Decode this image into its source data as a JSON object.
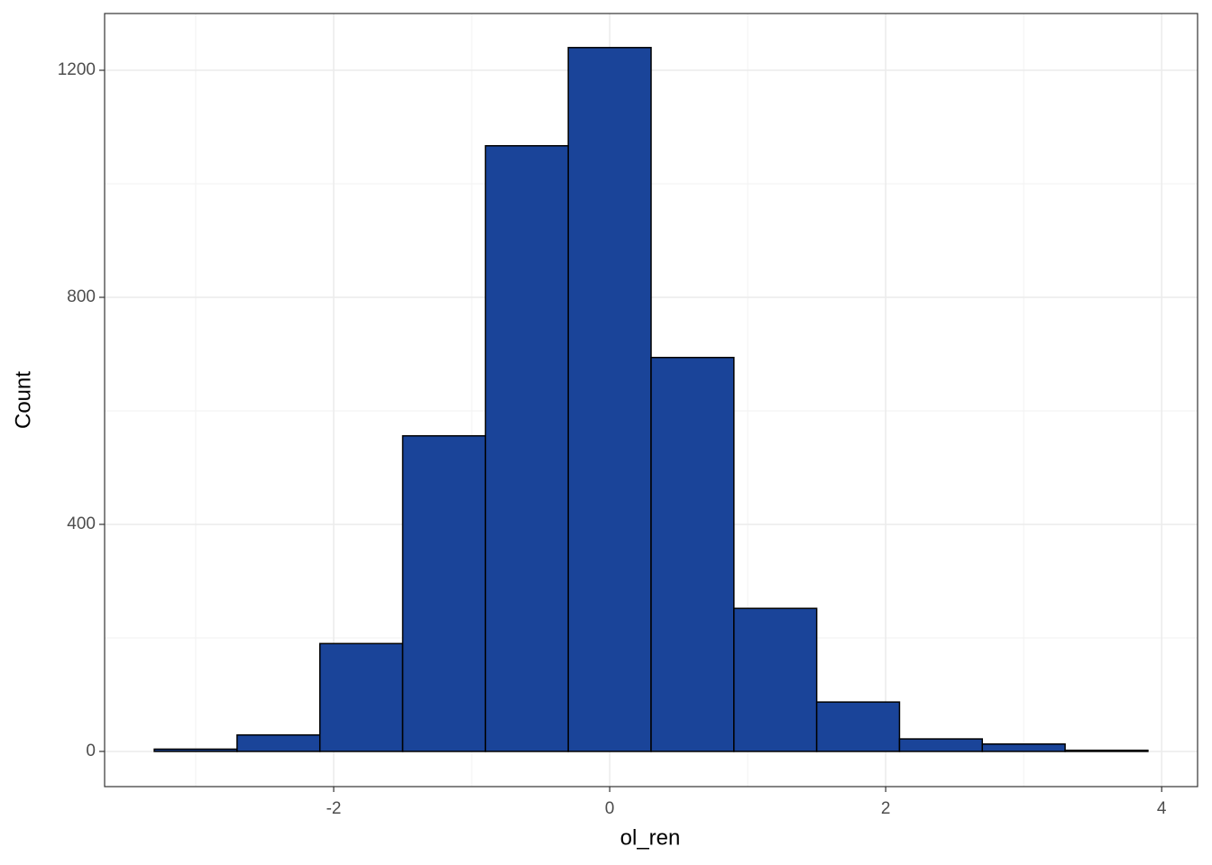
{
  "chart_data": {
    "type": "histogram",
    "x_label": "ol_ren",
    "y_label": "Count",
    "bins": [
      -3.3,
      -2.7,
      -2.1,
      -1.5,
      -0.9,
      -0.3,
      0.3,
      0.9,
      1.5,
      2.1,
      2.7,
      3.3,
      3.9
    ],
    "values": [
      4,
      29,
      190,
      556,
      1067,
      1240,
      694,
      252,
      87,
      22,
      13,
      2
    ],
    "color": "#1a4499",
    "edge_color": "#000000",
    "xlim": [
      -3.66,
      4.26
    ],
    "xticks": [
      -2,
      0,
      2,
      4
    ],
    "ylim": [
      -62,
      1300
    ],
    "yticks": [
      0,
      400,
      800,
      1200
    ],
    "grid": true,
    "minor_grid": true
  }
}
